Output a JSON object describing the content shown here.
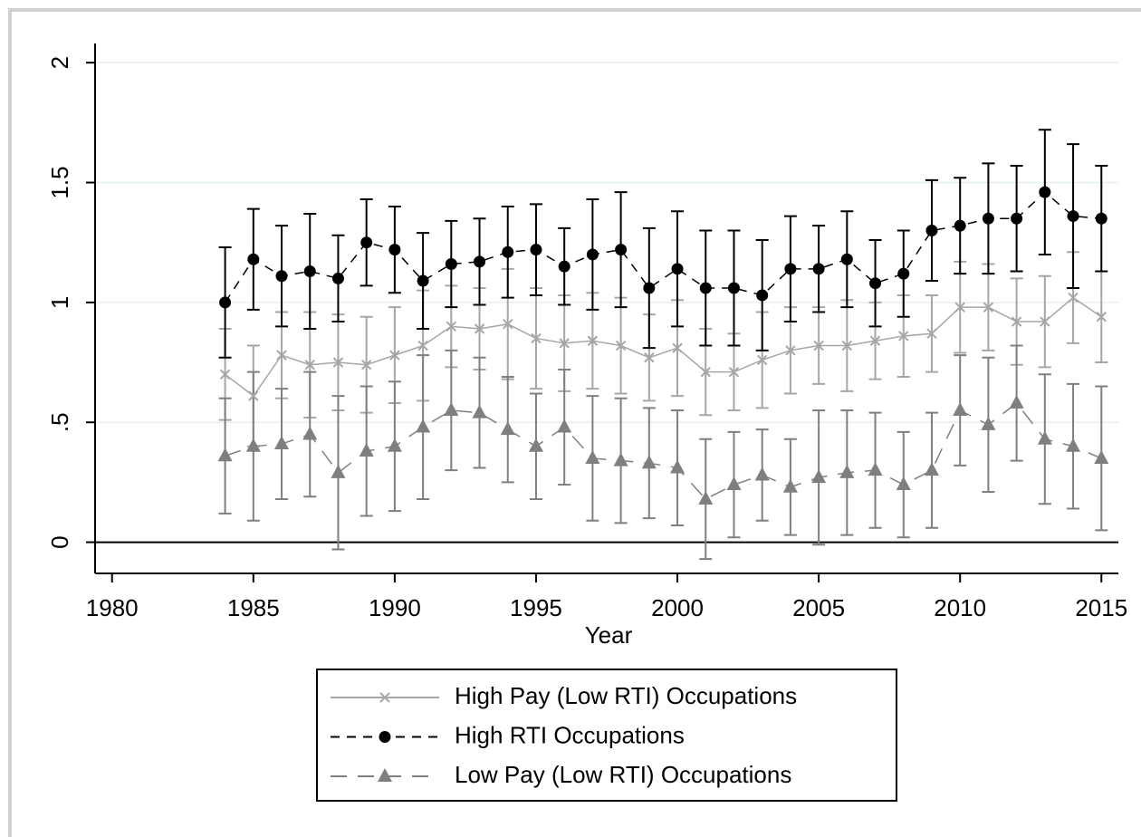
{
  "chart_data": {
    "type": "line",
    "x_label": "Year",
    "x": [
      1984,
      1985,
      1986,
      1987,
      1988,
      1989,
      1990,
      1991,
      1992,
      1993,
      1994,
      1995,
      1996,
      1997,
      1998,
      1999,
      2000,
      2001,
      2002,
      2003,
      2004,
      2005,
      2006,
      2007,
      2008,
      2009,
      2010,
      2011,
      2012,
      2013,
      2014,
      2015
    ],
    "xlim": [
      1979.4,
      2015.6
    ],
    "xticks": [
      1980,
      1985,
      1990,
      1995,
      2000,
      2005,
      2010,
      2015
    ],
    "ylim": [
      -0.13,
      2.08
    ],
    "yticks": [
      0,
      {
        "value": 0.5,
        "label": ".5"
      },
      1,
      1.5,
      2
    ],
    "grid": true,
    "series": [
      {
        "name": "High Pay (Low RTI) Occupations",
        "color": "#a6a6a6",
        "linestyle": "solid",
        "marker": "x",
        "values": [
          0.7,
          0.61,
          0.78,
          0.74,
          0.75,
          0.74,
          0.78,
          0.82,
          0.9,
          0.89,
          0.91,
          0.85,
          0.83,
          0.84,
          0.82,
          0.77,
          0.81,
          0.71,
          0.71,
          0.76,
          0.8,
          0.82,
          0.82,
          0.84,
          0.86,
          0.87,
          0.98,
          0.98,
          0.92,
          0.92,
          1.02,
          0.94
        ],
        "errors": [
          0.19,
          0.21,
          0.18,
          0.22,
          0.2,
          0.2,
          0.2,
          0.23,
          0.17,
          0.17,
          0.23,
          0.21,
          0.2,
          0.2,
          0.2,
          0.18,
          0.2,
          0.18,
          0.16,
          0.2,
          0.18,
          0.16,
          0.19,
          0.16,
          0.17,
          0.16,
          0.19,
          0.18,
          0.18,
          0.19,
          0.19,
          0.19
        ]
      },
      {
        "name": "High RTI Occupations",
        "color": "#000000",
        "linestyle": "dashed",
        "marker": "circle",
        "values": [
          1.0,
          1.18,
          1.11,
          1.13,
          1.1,
          1.25,
          1.22,
          1.09,
          1.16,
          1.17,
          1.21,
          1.22,
          1.15,
          1.2,
          1.22,
          1.06,
          1.14,
          1.06,
          1.06,
          1.03,
          1.14,
          1.14,
          1.18,
          1.08,
          1.12,
          1.3,
          1.32,
          1.35,
          1.35,
          1.46,
          1.36,
          1.35
        ],
        "errors": [
          0.23,
          0.21,
          0.21,
          0.24,
          0.18,
          0.18,
          0.18,
          0.2,
          0.18,
          0.18,
          0.19,
          0.19,
          0.16,
          0.23,
          0.24,
          0.25,
          0.24,
          0.24,
          0.24,
          0.23,
          0.22,
          0.18,
          0.2,
          0.18,
          0.18,
          0.21,
          0.2,
          0.23,
          0.22,
          0.26,
          0.3,
          0.22
        ]
      },
      {
        "name": "Low Pay (Low RTI) Occupations",
        "color": "#7f7f7f",
        "linestyle": "longdash",
        "marker": "triangle",
        "values": [
          0.36,
          0.4,
          0.41,
          0.45,
          0.29,
          0.38,
          0.4,
          0.48,
          0.55,
          0.54,
          0.47,
          0.4,
          0.48,
          0.35,
          0.34,
          0.33,
          0.31,
          0.18,
          0.24,
          0.28,
          0.23,
          0.27,
          0.29,
          0.3,
          0.24,
          0.3,
          0.55,
          0.49,
          0.58,
          0.43,
          0.4,
          0.35
        ],
        "errors": [
          0.24,
          0.31,
          0.23,
          0.26,
          0.32,
          0.27,
          0.27,
          0.3,
          0.25,
          0.23,
          0.22,
          0.22,
          0.24,
          0.26,
          0.26,
          0.23,
          0.24,
          0.25,
          0.22,
          0.19,
          0.2,
          0.28,
          0.26,
          0.24,
          0.22,
          0.24,
          0.23,
          0.28,
          0.24,
          0.27,
          0.26,
          0.3
        ]
      }
    ]
  }
}
